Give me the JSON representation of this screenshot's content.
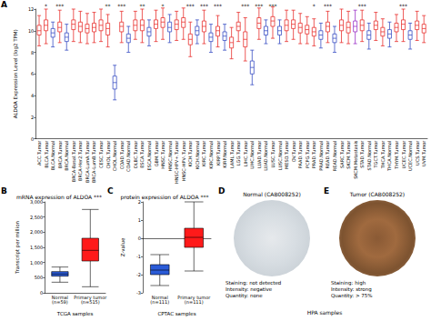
{
  "chart_data": [
    {
      "label": "A",
      "type": "boxplot",
      "y_label": "ALDOA Expression Level (log2 TPM)",
      "ylim": [
        0,
        12
      ],
      "yticks": [
        0,
        2,
        4,
        6,
        8,
        10,
        12
      ],
      "grid": false,
      "categories": [
        "ACC.Tumor",
        "BLCA.Tumor",
        "BLCA.Normal",
        "BRCA.Tumor",
        "BRCA.Normal",
        "BRCA-Basal.Tumor",
        "BRCA-Her2.Tumor",
        "BRCA-LumA.Tumor",
        "BRCA-LumB.Tumor",
        "CESC.Tumor",
        "CHOL.Tumor",
        "CHOL.Normal",
        "COAD.Tumor",
        "COAD.Normal",
        "DLBC.Tumor",
        "ESCA.Tumor",
        "ESCA.Normal",
        "GBM.Tumor",
        "HNSC.Tumor",
        "HNSC.Normal",
        "HNSC-HPV+.Tumor",
        "HNSC-HPV-.Tumor",
        "KICH.Tumor",
        "KICH.Normal",
        "KIRC.Tumor",
        "KIRC.Normal",
        "KIRP.Tumor",
        "KIRP.Normal",
        "LAML.Tumor",
        "LGG.Tumor",
        "LIHC.Tumor",
        "LIHC.Normal",
        "LUAD.Tumor",
        "LUAD.Normal",
        "LUSC.Tumor",
        "LUSC.Normal",
        "MESO.Tumor",
        "OV.Tumor",
        "PAAD.Tumor",
        "PCPG.Tumor",
        "PRAD.Tumor",
        "PRAD.Normal",
        "READ.Tumor",
        "READ.Normal",
        "SARC.Tumor",
        "SKCM.Tumor",
        "SKCM.Metastasis",
        "STAD.Tumor",
        "STAD.Normal",
        "TGCT.Tumor",
        "THCA.Tumor",
        "THCA.Normal",
        "THYM.Tumor",
        "UCEC.Tumor",
        "UCEC.Normal",
        "UCS.Tumor",
        "UVM.Tumor"
      ],
      "boxes": [
        [
          8.6,
          9.6,
          10.0,
          10.5,
          11.4
        ],
        [
          8.8,
          10.0,
          10.5,
          11.0,
          12.0
        ],
        [
          8.5,
          9.4,
          9.8,
          10.2,
          10.8
        ],
        [
          8.9,
          9.9,
          10.3,
          10.8,
          11.9
        ],
        [
          8.2,
          9.0,
          9.4,
          9.8,
          10.6
        ],
        [
          9.0,
          10.1,
          10.6,
          11.0,
          12.0
        ],
        [
          8.9,
          9.9,
          10.4,
          10.8,
          11.8
        ],
        [
          8.8,
          9.8,
          10.2,
          10.6,
          11.6
        ],
        [
          8.9,
          9.9,
          10.3,
          10.7,
          11.7
        ],
        [
          9.0,
          10.0,
          10.5,
          11.0,
          12.0
        ],
        [
          8.5,
          9.6,
          10.2,
          10.7,
          11.5
        ],
        [
          3.6,
          4.6,
          5.2,
          5.8,
          6.8
        ],
        [
          8.9,
          9.9,
          10.4,
          10.8,
          11.8
        ],
        [
          8.0,
          8.9,
          9.3,
          9.7,
          10.4
        ],
        [
          9.2,
          10.0,
          10.5,
          11.0,
          11.8
        ],
        [
          8.9,
          10.0,
          10.5,
          11.0,
          12.0
        ],
        [
          8.6,
          9.5,
          9.9,
          10.3,
          11.0
        ],
        [
          9.0,
          10.2,
          10.6,
          11.0,
          11.9
        ],
        [
          9.2,
          10.3,
          10.8,
          11.2,
          12.1
        ],
        [
          8.9,
          9.9,
          10.3,
          10.8,
          11.5
        ],
        [
          9.1,
          10.1,
          10.6,
          11.0,
          11.8
        ],
        [
          9.2,
          10.3,
          10.8,
          11.2,
          12.1
        ],
        [
          7.6,
          8.7,
          9.2,
          9.7,
          10.8
        ],
        [
          8.8,
          9.6,
          10.0,
          10.4,
          11.0
        ],
        [
          8.8,
          9.9,
          10.4,
          10.9,
          11.9
        ],
        [
          8.0,
          9.0,
          9.4,
          9.8,
          10.6
        ],
        [
          8.5,
          9.5,
          10.0,
          10.4,
          11.4
        ],
        [
          8.2,
          9.1,
          9.5,
          9.9,
          10.6
        ],
        [
          7.4,
          8.4,
          8.9,
          9.4,
          10.3
        ],
        [
          9.0,
          10.0,
          10.4,
          10.8,
          11.7
        ],
        [
          7.2,
          8.5,
          9.2,
          9.9,
          11.2
        ],
        [
          5.0,
          6.0,
          6.6,
          7.2,
          8.2
        ],
        [
          9.2,
          10.2,
          10.7,
          11.2,
          12.1
        ],
        [
          8.8,
          9.6,
          10.0,
          10.4,
          11.0
        ],
        [
          9.3,
          10.4,
          10.9,
          11.3,
          12.2
        ],
        [
          8.8,
          9.6,
          10.0,
          10.4,
          11.0
        ],
        [
          9.0,
          10.0,
          10.5,
          11.0,
          11.9
        ],
        [
          9.2,
          10.2,
          10.6,
          11.0,
          11.9
        ],
        [
          8.8,
          9.8,
          10.3,
          10.7,
          11.6
        ],
        [
          8.8,
          9.7,
          10.1,
          10.5,
          11.3
        ],
        [
          8.6,
          9.5,
          9.9,
          10.3,
          11.1
        ],
        [
          8.4,
          9.2,
          9.6,
          10.0,
          10.7
        ],
        [
          8.9,
          9.9,
          10.4,
          10.8,
          11.8
        ],
        [
          8.0,
          8.9,
          9.3,
          9.7,
          10.4
        ],
        [
          8.9,
          10.0,
          10.5,
          11.0,
          12.0
        ],
        [
          8.8,
          9.8,
          10.3,
          10.8,
          11.8
        ],
        [
          8.8,
          9.9,
          10.4,
          10.9,
          11.9
        ],
        [
          9.0,
          10.0,
          10.5,
          11.0,
          11.9
        ],
        [
          8.3,
          9.2,
          9.6,
          10.0,
          10.7
        ],
        [
          9.1,
          10.1,
          10.5,
          10.9,
          11.7
        ],
        [
          8.6,
          9.5,
          9.9,
          10.3,
          11.1
        ],
        [
          8.5,
          9.3,
          9.7,
          10.1,
          10.8
        ],
        [
          9.0,
          9.9,
          10.3,
          10.7,
          11.5
        ],
        [
          9.0,
          10.1,
          10.6,
          11.0,
          12.0
        ],
        [
          8.3,
          9.2,
          9.6,
          10.0,
          10.7
        ],
        [
          9.1,
          10.1,
          10.5,
          10.9,
          11.8
        ],
        [
          8.9,
          9.8,
          10.2,
          10.6,
          11.4
        ]
      ],
      "colors": [
        "#e8312f",
        "#e8312f",
        "#3a4fc4",
        "#e8312f",
        "#3a4fc4",
        "#e8312f",
        "#e8312f",
        "#e8312f",
        "#e8312f",
        "#e8312f",
        "#e8312f",
        "#3a4fc4",
        "#e8312f",
        "#3a4fc4",
        "#e8312f",
        "#e8312f",
        "#3a4fc4",
        "#e8312f",
        "#e8312f",
        "#3a4fc4",
        "#e8312f",
        "#e8312f",
        "#e8312f",
        "#3a4fc4",
        "#e8312f",
        "#3a4fc4",
        "#e8312f",
        "#3a4fc4",
        "#e8312f",
        "#e8312f",
        "#e8312f",
        "#3a4fc4",
        "#e8312f",
        "#3a4fc4",
        "#e8312f",
        "#3a4fc4",
        "#e8312f",
        "#e8312f",
        "#e8312f",
        "#e8312f",
        "#e8312f",
        "#3a4fc4",
        "#e8312f",
        "#3a4fc4",
        "#e8312f",
        "#e8312f",
        "#9b30c8",
        "#e8312f",
        "#3a4fc4",
        "#e8312f",
        "#e8312f",
        "#3a4fc4",
        "#e8312f",
        "#e8312f",
        "#3a4fc4",
        "#e8312f",
        "#e8312f"
      ],
      "significance": [
        null,
        "*",
        null,
        "***",
        null,
        null,
        null,
        null,
        null,
        null,
        "**",
        null,
        "***",
        null,
        null,
        "**",
        null,
        null,
        "*",
        null,
        null,
        null,
        "***",
        null,
        "***",
        null,
        "***",
        null,
        null,
        null,
        "***",
        null,
        "***",
        null,
        "***",
        null,
        null,
        null,
        null,
        null,
        "*",
        null,
        "***",
        null,
        null,
        null,
        null,
        "***",
        null,
        null,
        null,
        null,
        null,
        "***",
        null,
        null,
        null
      ]
    },
    {
      "label": "B",
      "type": "boxplot",
      "title": "mRNA expression of ALDOA ***",
      "x_label": "TCGA samples",
      "y_label": "Transcript per million",
      "categories": [
        "Normal (n=59)",
        "Primary tumor (n=515)"
      ],
      "boxes": [
        [
          350,
          550,
          620,
          700,
          850
        ],
        [
          200,
          1050,
          1400,
          1800,
          2750
        ]
      ],
      "colors": [
        "#2a5bd7",
        "#ff1a1a"
      ],
      "ylim": [
        0,
        3000
      ],
      "yticks": [
        0,
        500,
        1000,
        1500,
        2000,
        2500,
        3000
      ],
      "grid": false
    },
    {
      "label": "C",
      "type": "boxplot",
      "title": "protein expression of ALDOA ***",
      "x_label": "CPTAC samples",
      "y_label": "Z-value",
      "categories": [
        "Normal (n=111)",
        "Primary tumor (n=111)"
      ],
      "boxes": [
        [
          -2.6,
          -2.0,
          -1.75,
          -1.45,
          -0.9
        ],
        [
          -1.8,
          -0.5,
          0.05,
          0.55,
          2.0
        ]
      ],
      "colors": [
        "#2a5bd7",
        "#ff1a1a"
      ],
      "ylim": [
        -3,
        2
      ],
      "yticks": [
        -3,
        -2,
        -1,
        0,
        1,
        2
      ],
      "grid": false
    }
  ],
  "images": {
    "x_label": "HPA samples",
    "panels": [
      {
        "label": "D",
        "title": "Normal (CAB008252)",
        "lines": [
          "Staining: not detected",
          "Intensity: negative",
          "Quantity: none"
        ]
      },
      {
        "label": "E",
        "title": "Tumor (CAB008252)",
        "lines": [
          "Staining: high",
          "Intensity: strong",
          "Quantity: > 75%"
        ]
      }
    ]
  }
}
